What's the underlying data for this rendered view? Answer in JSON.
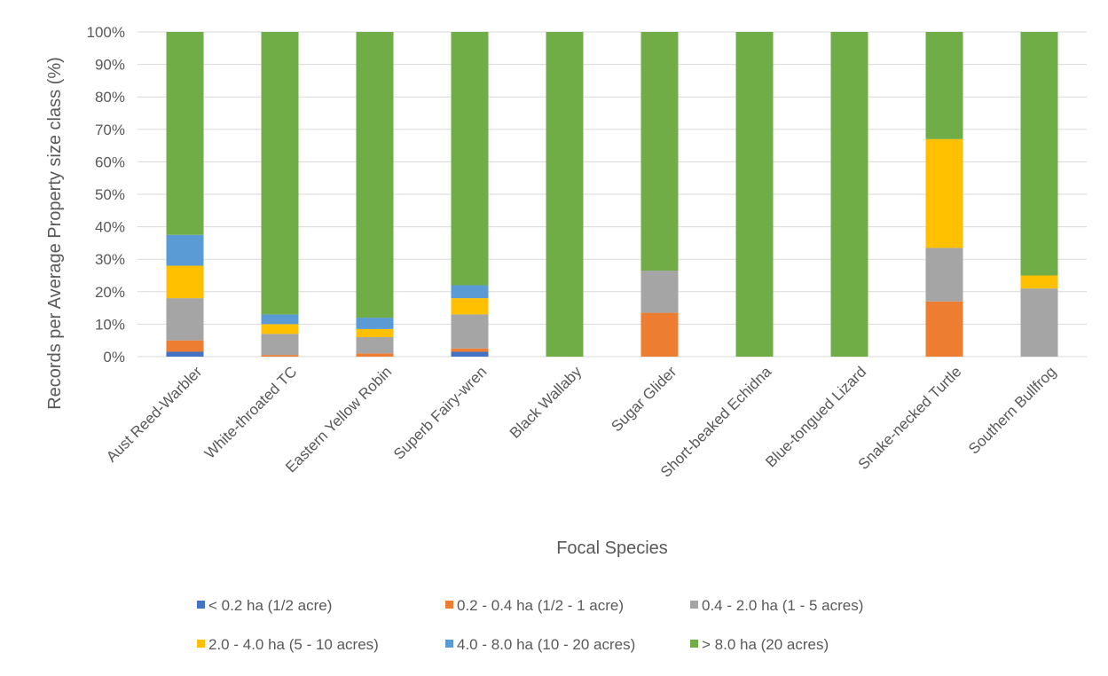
{
  "chart_data": {
    "type": "bar",
    "stacked": true,
    "stack_mode": "percent",
    "title": "",
    "xlabel": "Focal Species",
    "ylabel": "Records per Average Property size class (%)",
    "ylim": [
      0,
      100
    ],
    "yticks": [
      "0%",
      "10%",
      "20%",
      "30%",
      "40%",
      "50%",
      "60%",
      "70%",
      "80%",
      "90%",
      "100%"
    ],
    "grid": true,
    "legend_position": "bottom",
    "categories": [
      "Aust Reed-Warbler",
      "White-throated TC",
      "Eastern Yellow Robin",
      "Superb Fairy-wren",
      "Black Wallaby",
      "Sugar Glider",
      "Short-beaked Echidna",
      "Blue-tongued Lizard",
      "Snake-necked Turtle",
      "Southern Bullfrog"
    ],
    "series": [
      {
        "name": "< 0.2 ha (1/2 acre)",
        "color": "#4472C4",
        "values": [
          1.5,
          0,
          0,
          1.5,
          0,
          0,
          0,
          0,
          0,
          0
        ]
      },
      {
        "name": "0.2 - 0.4 ha (1/2 - 1 acre)",
        "color": "#ED7D31",
        "values": [
          3.5,
          0.5,
          1,
          1,
          0,
          13.5,
          0,
          0,
          17,
          0
        ]
      },
      {
        "name": "0.4 - 2.0 ha (1 - 5 acres)",
        "color": "#A5A5A5",
        "values": [
          13,
          6.5,
          5,
          10.5,
          0,
          13,
          0,
          0,
          16.5,
          21
        ]
      },
      {
        "name": "2.0 - 4.0 ha (5 - 10 acres)",
        "color": "#FFC000",
        "values": [
          10,
          3,
          2.5,
          5,
          0,
          0,
          0,
          0,
          33.5,
          4
        ]
      },
      {
        "name": "4.0 - 8.0 ha (10 - 20 acres)",
        "color": "#5B9BD5",
        "values": [
          9.5,
          3,
          3.5,
          4,
          0,
          0,
          0,
          0,
          0,
          0
        ]
      },
      {
        "name": "> 8.0 ha (20 acres)",
        "color": "#70AD47",
        "values": [
          62.5,
          87,
          88,
          78,
          100,
          73.5,
          100,
          100,
          33,
          75
        ]
      }
    ]
  }
}
